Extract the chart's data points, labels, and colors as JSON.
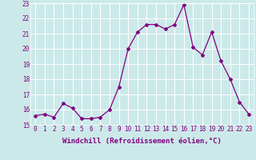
{
  "x": [
    0,
    1,
    2,
    3,
    4,
    5,
    6,
    7,
    8,
    9,
    10,
    11,
    12,
    13,
    14,
    15,
    16,
    17,
    18,
    19,
    20,
    21,
    22,
    23
  ],
  "y": [
    15.6,
    15.7,
    15.5,
    16.4,
    16.1,
    15.4,
    15.4,
    15.5,
    16.0,
    17.5,
    20.0,
    21.1,
    21.6,
    21.6,
    21.3,
    21.6,
    22.9,
    20.1,
    19.6,
    21.1,
    19.2,
    18.0,
    16.5,
    15.7
  ],
  "line_color": "#800080",
  "marker": "D",
  "marker_size": 2,
  "bg_color": "#cce9e9",
  "grid_color": "#ffffff",
  "xlabel": "Windchill (Refroidissement éolien,°C)",
  "ylim": [
    15,
    23
  ],
  "xlim": [
    -0.5,
    23.5
  ],
  "yticks": [
    15,
    16,
    17,
    18,
    19,
    20,
    21,
    22,
    23
  ],
  "xticks": [
    0,
    1,
    2,
    3,
    4,
    5,
    6,
    7,
    8,
    9,
    10,
    11,
    12,
    13,
    14,
    15,
    16,
    17,
    18,
    19,
    20,
    21,
    22,
    23
  ],
  "tick_label_fontsize": 5.5,
  "xlabel_fontsize": 6.5,
  "tick_color": "#800080",
  "label_color": "#800080"
}
